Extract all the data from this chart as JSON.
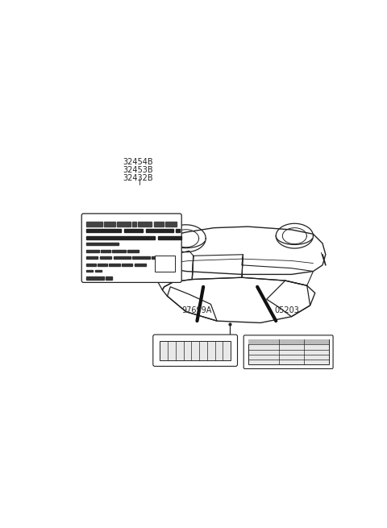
{
  "bg_color": "#ffffff",
  "label1_codes": [
    "32454B",
    "32453B",
    "32432B"
  ],
  "font_color": "#222222",
  "line_color": "#222222",
  "label2_code": "97699A",
  "label3_code": "05203"
}
